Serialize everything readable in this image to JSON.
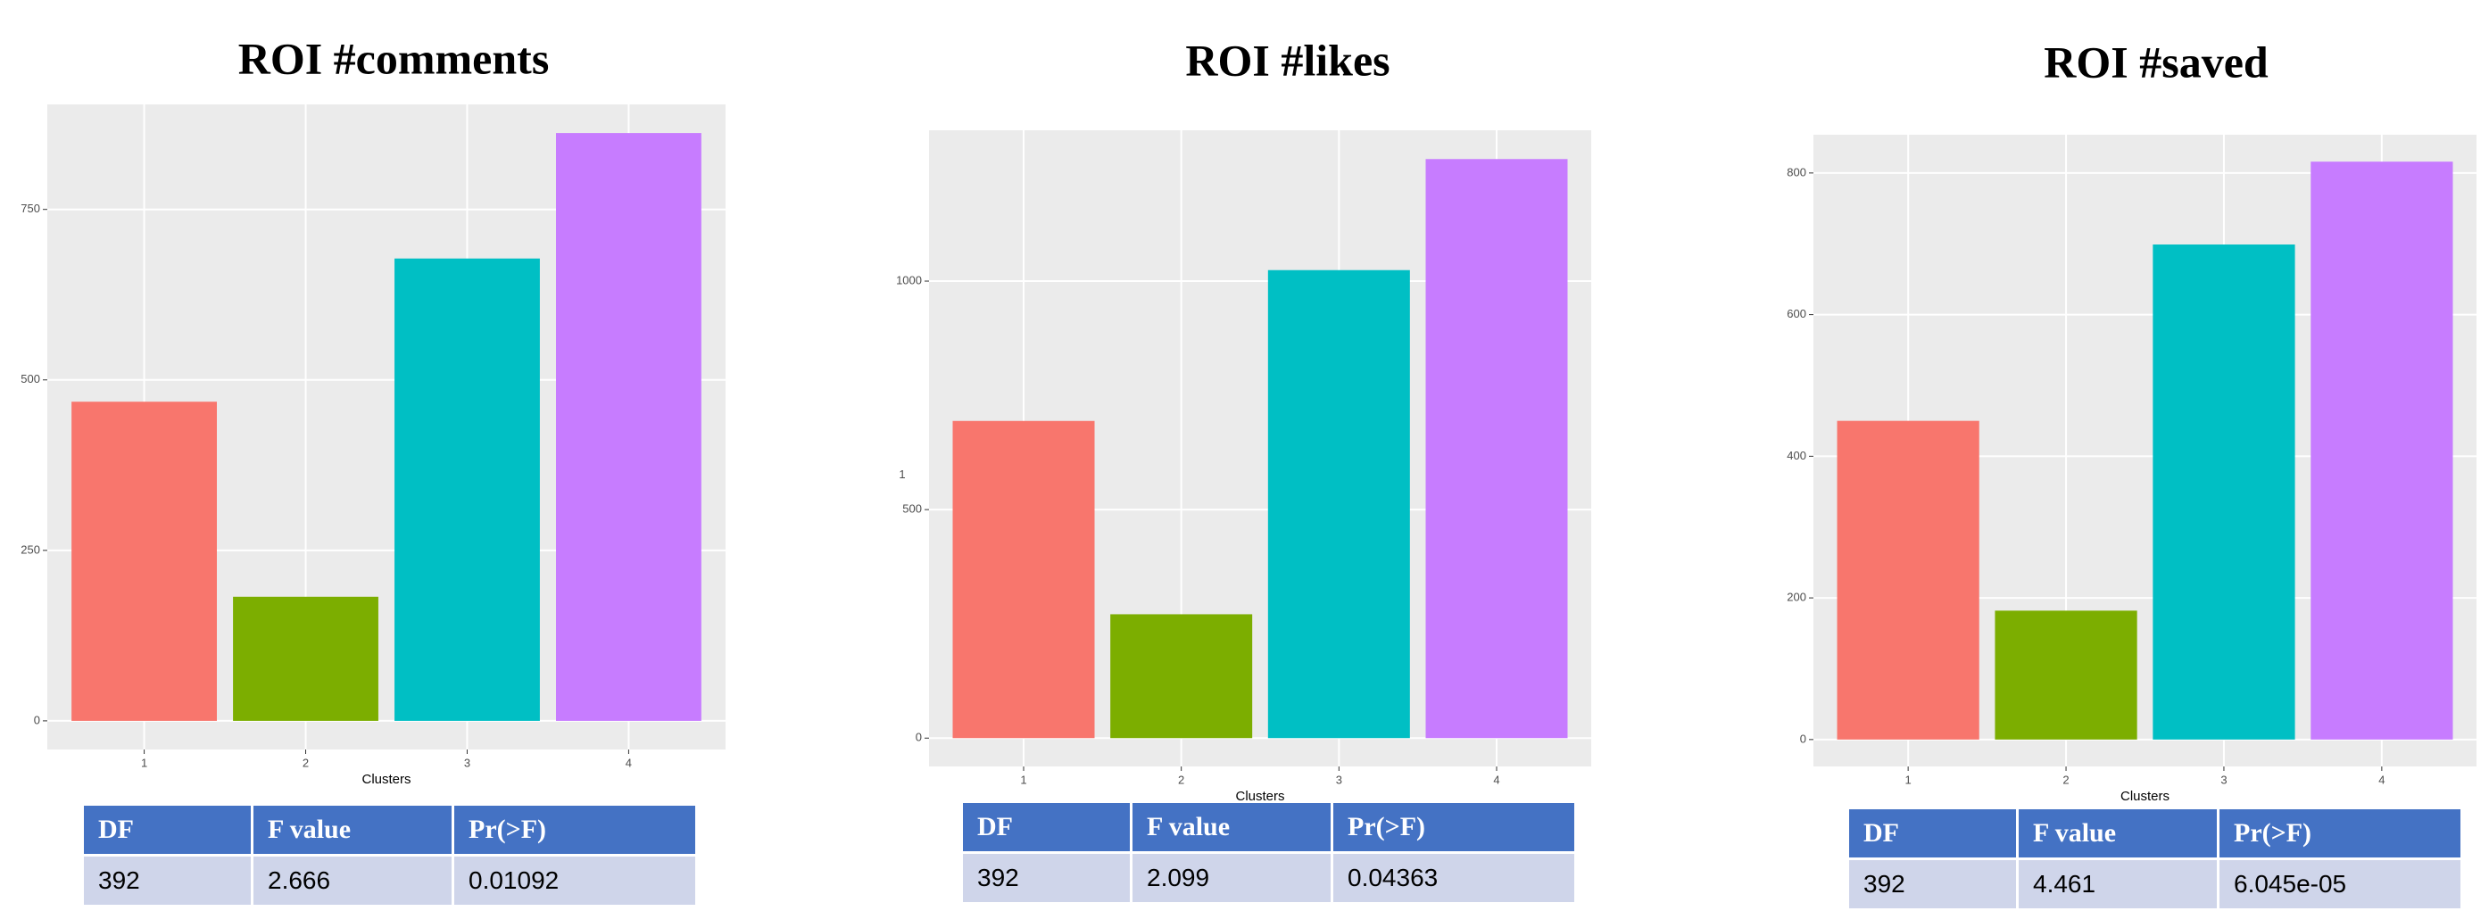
{
  "chart_data": [
    {
      "type": "bar",
      "title": "ROI #comments",
      "x_label": "Clusters",
      "categories": [
        "1",
        "2",
        "3",
        "4"
      ],
      "values": [
        468,
        182,
        678,
        862
      ],
      "colors": [
        "#f8766d",
        "#7cae00",
        "#00bfc4",
        "#c77cff"
      ],
      "ylim": [
        -42,
        904
      ],
      "yticks": [
        0,
        250,
        500,
        750
      ],
      "grid": true
    },
    {
      "type": "bar",
      "title": "ROI #likes",
      "x_label": "Clusters",
      "y_label": "1",
      "categories": [
        "1",
        "2",
        "3",
        "4"
      ],
      "values": [
        694,
        271,
        1024,
        1267
      ],
      "colors": [
        "#f8766d",
        "#7cae00",
        "#00bfc4",
        "#c77cff"
      ],
      "ylim": [
        -62,
        1330
      ],
      "yticks": [
        0,
        500,
        1000
      ],
      "grid": true
    },
    {
      "type": "bar",
      "title": "ROI #saved",
      "x_label": "Clusters",
      "categories": [
        "1",
        "2",
        "3",
        "4"
      ],
      "values": [
        450,
        182,
        699,
        816
      ],
      "colors": [
        "#f8766d",
        "#7cae00",
        "#00bfc4",
        "#c77cff"
      ],
      "ylim": [
        -38,
        854
      ],
      "yticks": [
        0,
        200,
        400,
        600,
        800
      ],
      "grid": true
    }
  ],
  "tables": [
    {
      "header": [
        "DF",
        "F value",
        "Pr(>F)"
      ],
      "rows": [
        [
          "392",
          "2.666",
          "0.01092"
        ]
      ]
    },
    {
      "header": [
        "DF",
        "F value",
        "Pr(>F)"
      ],
      "rows": [
        [
          "392",
          "2.099",
          "0.04363"
        ]
      ]
    },
    {
      "header": [
        "DF",
        "F value",
        "Pr(>F)"
      ],
      "rows": [
        [
          "392",
          "4.461",
          "6.045e-05"
        ]
      ]
    }
  ]
}
